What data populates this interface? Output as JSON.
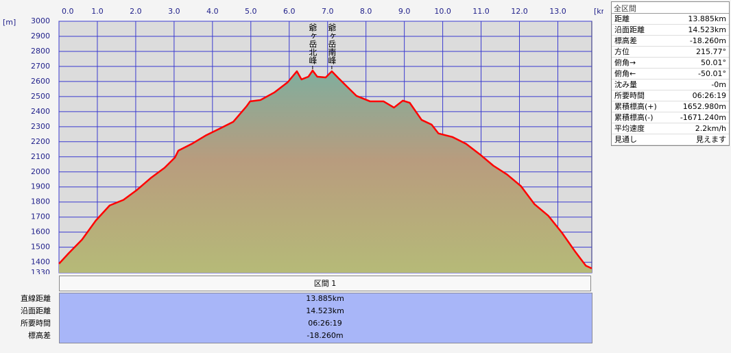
{
  "chart_data": {
    "type": "line",
    "x_label": "[km]",
    "y_label": "[m]",
    "x": [
      0,
      0.25,
      0.6,
      0.96,
      1.32,
      1.68,
      2.04,
      2.39,
      2.75,
      3.02,
      3.11,
      3.46,
      3.82,
      4.18,
      4.54,
      4.89,
      4.98,
      5.25,
      5.61,
      5.96,
      6.2,
      6.32,
      6.5,
      6.61,
      6.73,
      6.95,
      7.11,
      7.3,
      7.75,
      8.11,
      8.46,
      8.73,
      8.96,
      9.14,
      9.45,
      9.71,
      9.89,
      10.25,
      10.61,
      10.96,
      11.32,
      11.68,
      12.04,
      12.39,
      12.75,
      13.11,
      13.46,
      13.73,
      13.885
    ],
    "values": [
      1390,
      1459,
      1550,
      1677,
      1777,
      1814,
      1882,
      1959,
      2027,
      2095,
      2141,
      2186,
      2241,
      2286,
      2332,
      2436,
      2468,
      2477,
      2527,
      2595,
      2668,
      2614,
      2632,
      2673,
      2632,
      2627,
      2668,
      2618,
      2505,
      2468,
      2468,
      2427,
      2473,
      2459,
      2345,
      2314,
      2255,
      2232,
      2186,
      2118,
      2041,
      1982,
      1905,
      1786,
      1709,
      1595,
      1468,
      1377,
      1359
    ],
    "color": "#ff0000",
    "xlim": [
      0,
      13.885
    ],
    "ylim": [
      1330,
      3000
    ],
    "xticks": [
      {
        "value": 0,
        "label": "0.0"
      },
      {
        "value": 1,
        "label": "1.0"
      },
      {
        "value": 2,
        "label": "2.0"
      },
      {
        "value": 3,
        "label": "3.0"
      },
      {
        "value": 4,
        "label": "4.0"
      },
      {
        "value": 5,
        "label": "5.0"
      },
      {
        "value": 6,
        "label": "6.0"
      },
      {
        "value": 7,
        "label": "7.0"
      },
      {
        "value": 8,
        "label": "8.0"
      },
      {
        "value": 9,
        "label": "9.0"
      },
      {
        "value": 10,
        "label": "10.0"
      },
      {
        "value": 11,
        "label": "11.0"
      },
      {
        "value": 12,
        "label": "12.0"
      },
      {
        "value": 13,
        "label": "13.0"
      }
    ],
    "yticks": [
      1330,
      1400,
      1500,
      1600,
      1700,
      1800,
      1900,
      2000,
      2100,
      2200,
      2300,
      2400,
      2500,
      2600,
      2700,
      2800,
      2900,
      3000
    ],
    "grid": true,
    "annotations": [
      {
        "text": "爺ヶ岳北峰",
        "x": 6.61
      },
      {
        "text": "爺ヶ岳南峰",
        "x": 7.11
      }
    ]
  },
  "summary": {
    "title": "全区間",
    "rows": [
      [
        "距離",
        "13.885km"
      ],
      [
        "沿面距離",
        "14.523km"
      ],
      [
        "標高差",
        "-18.260m"
      ],
      [
        "方位",
        "215.77°"
      ],
      [
        "俯角→",
        "50.01°"
      ],
      [
        "俯角←",
        "-50.01°"
      ],
      [
        "沈み量",
        "-0m"
      ],
      [
        "所要時間",
        "06:26:19"
      ],
      [
        "累積標高(+)",
        "1652.980m"
      ],
      [
        "累積標高(-)",
        "-1671.240m"
      ],
      [
        "平均速度",
        "2.2km/h"
      ],
      [
        "見通し",
        "見えます"
      ]
    ]
  },
  "sections": {
    "header": "区間 1",
    "rows": [
      [
        "直線距離",
        "13.885km"
      ],
      [
        "沿面距離",
        "14.523km"
      ],
      [
        "所要時間",
        "06:26:19"
      ],
      [
        "標高差",
        "-18.260m"
      ]
    ]
  }
}
